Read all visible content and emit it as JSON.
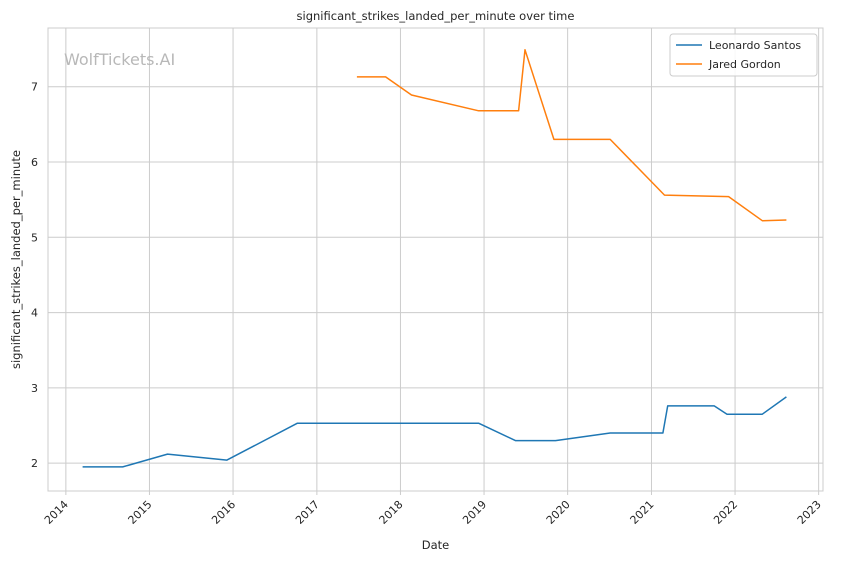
{
  "chart_data": {
    "type": "line",
    "title": "significant_strikes_landed_per_minute over time",
    "xlabel": "Date",
    "ylabel": "significant_strikes_landed_per_minute",
    "watermark": "WolfTickets.AI",
    "xlim": [
      "2013-10-15",
      "2023-01-20"
    ],
    "ylim": [
      1.63,
      7.78
    ],
    "x_ticks": [
      "2014",
      "2015",
      "2016",
      "2017",
      "2018",
      "2019",
      "2020",
      "2021",
      "2022",
      "2023"
    ],
    "y_ticks": [
      2,
      3,
      4,
      5,
      6,
      7
    ],
    "grid": true,
    "legend_position": "top-right",
    "series": [
      {
        "name": "Leonardo Santos",
        "color": "#1f77b4",
        "points": [
          {
            "x": "2014-03-15",
            "y": 1.95
          },
          {
            "x": "2014-09-06",
            "y": 1.95
          },
          {
            "x": "2015-03-21",
            "y": 2.12
          },
          {
            "x": "2015-12-05",
            "y": 2.04
          },
          {
            "x": "2016-10-08",
            "y": 2.53
          },
          {
            "x": "2018-12-08",
            "y": 2.53
          },
          {
            "x": "2019-05-18",
            "y": 2.3
          },
          {
            "x": "2019-11-09",
            "y": 2.3
          },
          {
            "x": "2020-07-05",
            "y": 2.4
          },
          {
            "x": "2021-02-20",
            "y": 2.4
          },
          {
            "x": "2021-03-13",
            "y": 2.76
          },
          {
            "x": "2021-10-02",
            "y": 2.76
          },
          {
            "x": "2021-11-27",
            "y": 2.65
          },
          {
            "x": "2022-04-30",
            "y": 2.65
          },
          {
            "x": "2022-08-13",
            "y": 2.88
          }
        ]
      },
      {
        "name": "Jared Gordon",
        "color": "#ff7f0e",
        "points": [
          {
            "x": "2017-06-25",
            "y": 7.13
          },
          {
            "x": "2017-10-28",
            "y": 7.13
          },
          {
            "x": "2018-02-18",
            "y": 6.89
          },
          {
            "x": "2018-12-08",
            "y": 6.68
          },
          {
            "x": "2019-06-01",
            "y": 6.68
          },
          {
            "x": "2019-06-29",
            "y": 7.49
          },
          {
            "x": "2019-11-02",
            "y": 6.3
          },
          {
            "x": "2020-07-05",
            "y": 6.3
          },
          {
            "x": "2021-02-27",
            "y": 5.56
          },
          {
            "x": "2021-12-04",
            "y": 5.54
          },
          {
            "x": "2022-04-30",
            "y": 5.22
          },
          {
            "x": "2022-08-13",
            "y": 5.23
          }
        ]
      }
    ]
  }
}
